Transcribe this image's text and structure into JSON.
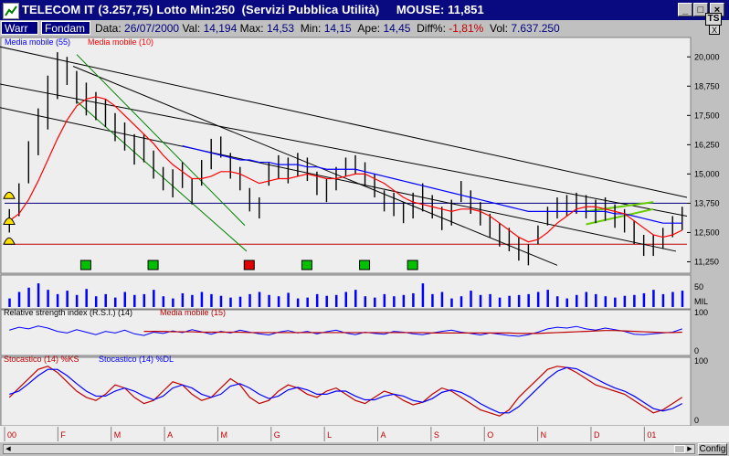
{
  "window": {
    "title": "TELECOM IT (3.257,75) Lotto Min:250  (Servizi Pubblica Utilità)     MOUSE: 11,851",
    "minimize": "_",
    "maximize": "□",
    "close": "×"
  },
  "toolbar": {
    "tab_warr": "Warr",
    "tab_fondam": "Fondam",
    "data_label": "Data:",
    "data_value": "26/07/2000",
    "val_label": "Val:",
    "val_value": "14,194",
    "max_label": "Max:",
    "max_value": "14,53",
    "min_label": "Min:",
    "min_value": "14,15",
    "ape_label": "Ape:",
    "ape_value": "14,45",
    "diff_label": "Diff%:",
    "diff_value": "-1,81%",
    "vol_label": "Vol:",
    "vol_value": "7.637.250",
    "ts_button": "TS",
    "close_chart": "X"
  },
  "colors": {
    "chart_bg": "#eeeeee",
    "price": "#000000",
    "ma55": "#0000ff",
    "ma10": "#ff0000",
    "channel_green": "#008000",
    "triangle_green": "#66cc00",
    "signal_green": "#00c000",
    "signal_red": "#e00000",
    "hline_blue": "#000080",
    "hline_red": "#c00000",
    "volume": "#0000ff"
  },
  "chart_data": [
    {
      "type": "line",
      "name": "price",
      "legend": [
        "Media mobile (55)",
        "Media mobile (10)"
      ],
      "y_ticks": [
        "20,000",
        "18,750",
        "17,500",
        "16,250",
        "15,000",
        "13,750",
        "12,500",
        "11,250"
      ],
      "ylim": [
        10.8,
        20.4
      ],
      "x_tick_labels": [
        "00",
        "F",
        "M",
        "A",
        "M",
        "G",
        "L",
        "A",
        "S",
        "O",
        "N",
        "D",
        "01"
      ],
      "series_close": [
        13.0,
        13.8,
        15.2,
        16.5,
        17.8,
        19.0,
        19.6,
        18.8,
        18.2,
        17.9,
        17.6,
        17.0,
        16.6,
        16.0,
        16.1,
        15.4,
        14.8,
        14.5,
        14.9,
        14.2,
        15.0,
        15.8,
        16.2,
        15.4,
        14.8,
        13.9,
        13.5,
        15.0,
        15.3,
        15.1,
        15.4,
        15.2,
        14.6,
        14.3,
        14.8,
        15.3,
        15.4,
        15.0,
        14.5,
        13.9,
        13.7,
        13.3,
        13.6,
        13.9,
        13.6,
        13.1,
        13.3,
        14.2,
        13.8,
        13.3,
        12.8,
        12.4,
        12.2,
        11.8,
        11.5,
        12.4,
        13.2,
        13.5,
        13.6,
        13.7,
        13.6,
        13.4,
        13.5,
        13.2,
        13.0,
        12.5,
        11.9,
        11.9,
        12.2,
        12.8,
        13.1
      ],
      "series_high": [
        13.5,
        14.6,
        16.4,
        17.8,
        19.2,
        20.2,
        20.0,
        19.4,
        18.9,
        18.5,
        18.2,
        17.6,
        17.2,
        16.7,
        16.7,
        16.0,
        15.3,
        15.2,
        15.5,
        14.8,
        15.6,
        16.5,
        16.6,
        15.9,
        15.3,
        14.4,
        14.0,
        15.5,
        15.8,
        15.7,
        15.9,
        15.7,
        15.1,
        14.8,
        15.3,
        15.7,
        15.8,
        15.5,
        15.0,
        14.3,
        14.2,
        13.8,
        14.2,
        14.6,
        14.1,
        13.6,
        13.9,
        14.7,
        14.3,
        13.8,
        13.3,
        12.9,
        12.7,
        12.3,
        12.0,
        12.8,
        13.6,
        14.0,
        14.1,
        14.2,
        14.1,
        13.9,
        14.0,
        13.7,
        13.5,
        13.0,
        12.4,
        12.4,
        12.7,
        13.2,
        13.6
      ],
      "series_low": [
        12.5,
        13.2,
        14.6,
        15.8,
        16.9,
        18.2,
        18.8,
        18.0,
        17.5,
        17.3,
        17.0,
        16.4,
        16.0,
        15.4,
        15.5,
        14.8,
        14.3,
        14.0,
        14.4,
        13.7,
        14.5,
        15.2,
        15.7,
        14.8,
        14.3,
        13.4,
        13.1,
        14.5,
        14.8,
        14.6,
        14.9,
        14.7,
        14.1,
        13.8,
        14.3,
        14.9,
        15.0,
        14.5,
        14.0,
        13.4,
        13.2,
        12.9,
        13.1,
        13.4,
        13.1,
        12.6,
        12.8,
        13.8,
        13.3,
        12.8,
        12.3,
        11.9,
        11.7,
        11.3,
        11.1,
        12.0,
        12.8,
        13.1,
        13.2,
        13.3,
        13.1,
        12.9,
        13.0,
        12.7,
        12.5,
        12.0,
        11.5,
        11.5,
        11.8,
        12.3,
        12.6
      ],
      "ma10": [
        13.0,
        13.3,
        13.9,
        14.7,
        15.6,
        16.5,
        17.3,
        17.9,
        18.2,
        18.3,
        18.2,
        17.9,
        17.5,
        17.1,
        16.7,
        16.3,
        15.8,
        15.4,
        15.1,
        14.8,
        14.8,
        14.9,
        15.1,
        15.1,
        15.0,
        14.8,
        14.6,
        14.7,
        14.8,
        14.8,
        14.9,
        15.0,
        14.9,
        14.8,
        14.8,
        14.9,
        15.0,
        15.0,
        14.8,
        14.6,
        14.3,
        14.0,
        13.8,
        13.7,
        13.6,
        13.5,
        13.4,
        13.5,
        13.5,
        13.4,
        13.2,
        12.9,
        12.6,
        12.3,
        12.1,
        12.2,
        12.5,
        12.9,
        13.2,
        13.5,
        13.6,
        13.6,
        13.5,
        13.4,
        13.3,
        13.0,
        12.7,
        12.4,
        12.3,
        12.4,
        12.6
      ],
      "ma55": [
        null,
        null,
        null,
        null,
        null,
        null,
        null,
        null,
        null,
        null,
        null,
        null,
        null,
        null,
        null,
        null,
        null,
        null,
        16.2,
        16.1,
        16.0,
        15.9,
        15.8,
        15.7,
        15.6,
        15.6,
        15.5,
        15.5,
        15.4,
        15.4,
        15.4,
        15.3,
        15.3,
        15.2,
        15.2,
        15.2,
        15.2,
        15.1,
        15.0,
        14.9,
        14.8,
        14.7,
        14.6,
        14.5,
        14.4,
        14.3,
        14.2,
        14.1,
        14.0,
        13.9,
        13.8,
        13.7,
        13.6,
        13.5,
        13.4,
        13.4,
        13.4,
        13.4,
        13.4,
        13.4,
        13.4,
        13.4,
        13.4,
        13.3,
        13.3,
        13.2,
        13.1,
        13.0,
        12.9,
        12.9,
        12.9
      ],
      "signals": [
        {
          "index": 8,
          "type": "buy"
        },
        {
          "index": 15,
          "type": "buy"
        },
        {
          "index": 25,
          "type": "sell"
        },
        {
          "index": 31,
          "type": "buy"
        },
        {
          "index": 37,
          "type": "buy"
        },
        {
          "index": 42,
          "type": "buy"
        }
      ],
      "horizontal_lines": [
        13.75,
        12.0
      ]
    },
    {
      "type": "bar",
      "name": "volume",
      "label": "MIL",
      "y_ticks": [
        "50"
      ],
      "values": [
        20,
        35,
        45,
        55,
        40,
        30,
        38,
        28,
        42,
        25,
        30,
        22,
        35,
        28,
        30,
        40,
        25,
        20,
        32,
        28,
        35,
        30,
        26,
        22,
        24,
        30,
        35,
        28,
        25,
        33,
        20,
        22,
        30,
        26,
        28,
        35,
        40,
        25,
        22,
        30,
        25,
        28,
        32,
        55,
        30,
        35,
        20,
        25,
        38,
        28,
        30,
        22,
        26,
        28,
        30,
        35,
        40,
        25,
        20,
        28,
        35,
        30,
        25,
        22,
        26,
        28,
        32,
        40,
        30,
        35,
        38
      ]
    },
    {
      "type": "line",
      "name": "rsi",
      "legend": [
        "Relative strength index (R.S.I.) (14)",
        "Media mobile (15)"
      ],
      "y_ticks": [
        "100",
        "0"
      ],
      "ylim": [
        0,
        100
      ],
      "values": [
        55,
        62,
        58,
        65,
        60,
        52,
        48,
        56,
        50,
        44,
        52,
        48,
        55,
        46,
        42,
        50,
        47,
        53,
        49,
        56,
        51,
        45,
        52,
        48,
        55,
        50,
        46,
        43,
        50,
        54,
        48,
        52,
        46,
        51,
        55,
        48,
        44,
        50,
        47,
        45,
        52,
        50,
        46,
        44,
        48,
        52,
        55,
        50,
        47,
        43,
        48,
        45,
        42,
        40,
        44,
        50,
        58,
        62,
        60,
        64,
        58,
        55,
        60,
        56,
        52,
        45,
        44,
        46,
        48,
        50,
        58
      ],
      "ma15": [
        null,
        null,
        null,
        null,
        null,
        null,
        null,
        null,
        null,
        null,
        null,
        null,
        null,
        null,
        52,
        52,
        52,
        51,
        51,
        51,
        50,
        50,
        50,
        50,
        50,
        49,
        49,
        49,
        49,
        49,
        49,
        49,
        49,
        49,
        49,
        49,
        49,
        49,
        49,
        49,
        49,
        49,
        49,
        49,
        48,
        48,
        48,
        48,
        48,
        48,
        48,
        48,
        48,
        47,
        47,
        47,
        48,
        49,
        50,
        51,
        52,
        53,
        54,
        54,
        53,
        52,
        51,
        50,
        49,
        49,
        50
      ]
    },
    {
      "type": "line",
      "name": "stochastic",
      "legend": [
        "Stocastico (14) %KS",
        "Stocastico (14) %DL"
      ],
      "y_ticks": [
        "100",
        "0"
      ],
      "ylim": [
        0,
        100
      ],
      "ks": [
        40,
        55,
        70,
        85,
        90,
        80,
        65,
        50,
        40,
        35,
        45,
        60,
        55,
        40,
        30,
        35,
        50,
        65,
        60,
        45,
        35,
        40,
        55,
        70,
        60,
        40,
        30,
        35,
        50,
        60,
        55,
        45,
        40,
        50,
        55,
        45,
        35,
        30,
        40,
        50,
        45,
        35,
        28,
        32,
        45,
        55,
        50,
        40,
        30,
        20,
        15,
        10,
        20,
        40,
        55,
        70,
        85,
        90,
        88,
        80,
        70,
        60,
        55,
        50,
        45,
        35,
        25,
        15,
        20,
        30,
        40
      ],
      "dl": [
        45,
        50,
        62,
        75,
        85,
        85,
        75,
        62,
        50,
        42,
        42,
        50,
        55,
        50,
        42,
        36,
        42,
        55,
        60,
        55,
        45,
        40,
        45,
        58,
        62,
        55,
        45,
        38,
        42,
        52,
        56,
        52,
        45,
        45,
        50,
        50,
        42,
        36,
        36,
        42,
        45,
        42,
        35,
        32,
        38,
        48,
        52,
        48,
        40,
        30,
        22,
        15,
        15,
        25,
        40,
        55,
        70,
        82,
        88,
        86,
        78,
        70,
        62,
        55,
        50,
        42,
        32,
        22,
        18,
        22,
        30
      ]
    }
  ]
}
